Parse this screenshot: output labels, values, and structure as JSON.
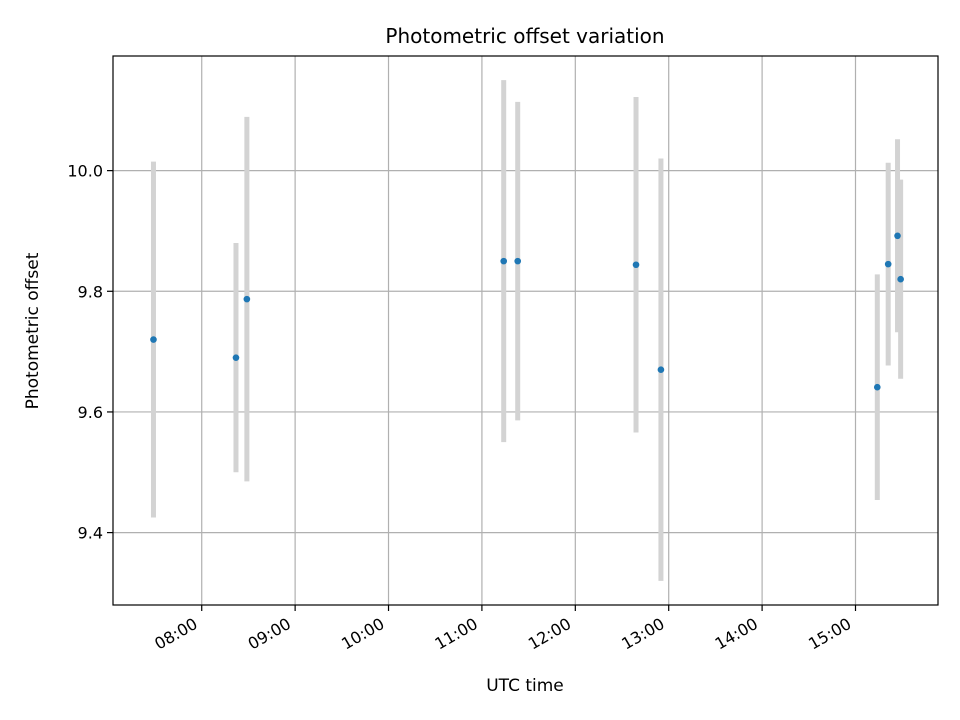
{
  "chart_data": {
    "type": "scatter",
    "title": "Photometric offset variation",
    "xlabel": "UTC time",
    "ylabel": "Photometric offset",
    "x_axis": "time",
    "xlim": [
      "07:03",
      "15:53"
    ],
    "ylim": [
      9.28,
      10.19
    ],
    "x_ticks": [
      "08:00",
      "09:00",
      "10:00",
      "11:00",
      "12:00",
      "13:00",
      "14:00",
      "15:00"
    ],
    "y_ticks": [
      "9.4",
      "9.6",
      "9.8",
      "10.0"
    ],
    "grid": true,
    "marker_color": "#1f77b4",
    "errorbar_color": "#d3d3d3",
    "points": [
      {
        "x": "07:29",
        "y": 9.72,
        "err": 0.295
      },
      {
        "x": "08:22",
        "y": 9.69,
        "err": 0.19
      },
      {
        "x": "08:29",
        "y": 9.787,
        "err": 0.302
      },
      {
        "x": "11:14",
        "y": 9.85,
        "err": 0.3
      },
      {
        "x": "11:23",
        "y": 9.85,
        "err": 0.264
      },
      {
        "x": "12:39",
        "y": 9.844,
        "err": 0.278
      },
      {
        "x": "12:55",
        "y": 9.67,
        "err": 0.35
      },
      {
        "x": "15:14",
        "y": 9.641,
        "err": 0.187
      },
      {
        "x": "15:21",
        "y": 9.845,
        "err": 0.168
      },
      {
        "x": "15:27",
        "y": 9.892,
        "err": 0.16
      },
      {
        "x": "15:29",
        "y": 9.82,
        "err": 0.165
      }
    ]
  }
}
